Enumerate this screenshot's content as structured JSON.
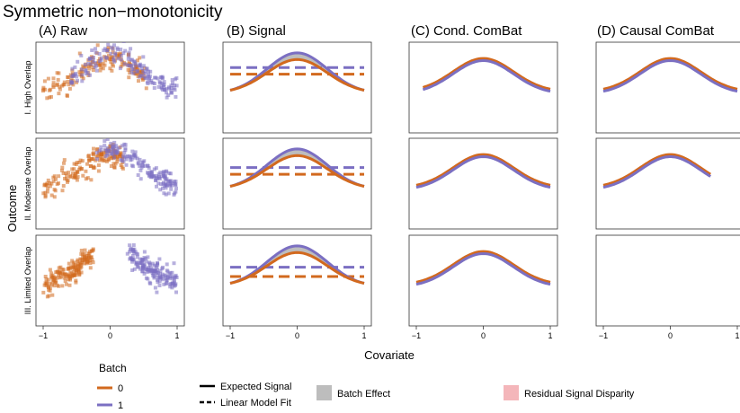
{
  "figure": {
    "title": "Symmetric non−monotonicity",
    "columns": [
      "(A) Raw",
      "(B) Signal",
      "(C) Cond. ComBat",
      "(D) Causal ComBat"
    ],
    "rows": [
      "I. High Overlap",
      "II. Moderate Overlap",
      "III. Limited Overlap"
    ],
    "xlabel": "Covariate",
    "ylabel": "Outcome",
    "x_ticks": [
      "−1",
      "0",
      "1"
    ]
  },
  "legend": {
    "batch_title": "Batch",
    "batch_labels": [
      "0",
      "1"
    ],
    "line_types": [
      "Expected Signal",
      "Linear Model Fit"
    ],
    "fills": [
      "Batch Effect",
      "Residual Signal Disparity"
    ]
  },
  "colors": {
    "batch0": "#D2691E",
    "batch1": "#7B6FC2",
    "batch_effect_fill": "#BDBDBD",
    "residual_fill": "#F4B6BA",
    "panel_border": "#333333"
  },
  "chart_data": {
    "type": "scatter",
    "xlim": [
      -1,
      1
    ],
    "ylim": [
      -1.9,
      1.5
    ],
    "grid": false,
    "legend_position": "bottom",
    "expected_signal": {
      "batch0_peak": 0.85,
      "batch1_peak": 1.1,
      "tail_value_at_x_pm1": -0.3,
      "x": [
        -1,
        -0.8,
        -0.6,
        -0.4,
        -0.2,
        0,
        0.2,
        0.4,
        0.6,
        0.8,
        1
      ],
      "batch0": [
        -0.3,
        -0.06,
        0.26,
        0.58,
        0.79,
        0.85,
        0.79,
        0.58,
        0.26,
        -0.06,
        -0.3
      ],
      "batch1": [
        -0.15,
        0.14,
        0.49,
        0.81,
        1.04,
        1.1,
        1.04,
        0.81,
        0.49,
        0.14,
        -0.15
      ]
    },
    "linear_fit": [
      {
        "row": "I. High Overlap",
        "batch0": 0.3,
        "batch1": 0.55
      },
      {
        "row": "II. Moderate Overlap",
        "batch0": 0.15,
        "batch1": 0.4
      },
      {
        "row": "III. Limited Overlap",
        "batch0": -0.05,
        "batch1": 0.3
      }
    ],
    "raw_samples": [
      {
        "row": "I. High Overlap",
        "batch0_x_range": [
          -1,
          0.55
        ],
        "batch1_x_range": [
          -0.6,
          1
        ],
        "n_per_batch": 160
      },
      {
        "row": "II. Moderate Overlap",
        "batch0_x_range": [
          -1,
          0.2
        ],
        "batch1_x_range": [
          -0.2,
          1
        ],
        "n_per_batch": 160
      },
      {
        "row": "III. Limited Overlap",
        "batch0_x_range": [
          -1,
          -0.25
        ],
        "batch1_x_range": [
          0.25,
          1
        ],
        "n_per_batch": 160
      }
    ],
    "corrected": [
      {
        "row": "I. High Overlap",
        "method": "Cond. ComBat",
        "x_range": [
          -0.9,
          1
        ],
        "peak": 0.85
      },
      {
        "row": "I. High Overlap",
        "method": "Causal ComBat",
        "x_range": [
          -1,
          1
        ],
        "peak": 0.85
      },
      {
        "row": "II. Moderate Overlap",
        "method": "Cond. ComBat",
        "x_range": [
          -1,
          1
        ],
        "peak": 0.85
      },
      {
        "row": "II. Moderate Overlap",
        "method": "Causal ComBat",
        "x_range": [
          -1,
          0.6
        ],
        "peak": 0.85
      },
      {
        "row": "III. Limited Overlap",
        "method": "Cond. ComBat",
        "x_range": [
          -1,
          1
        ],
        "peak": 0.85
      }
    ]
  }
}
